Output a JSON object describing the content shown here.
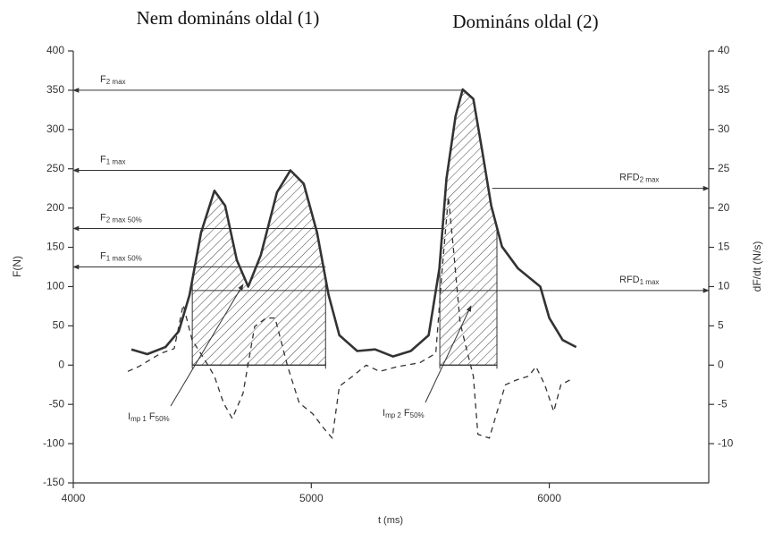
{
  "chart_data": {
    "type": "line",
    "titles": [
      "Nem domináns oldal (1)",
      "Domináns oldal (2)"
    ],
    "x_label": "t (ms)",
    "y_label": "F(N)",
    "y2_label": "dF/dt (N/s)",
    "xlim": [
      4000,
      6670
    ],
    "xticks": [
      4000,
      5000,
      6000
    ],
    "ylim": [
      -150,
      400
    ],
    "yticks": [
      -150,
      -100,
      -50,
      0,
      50,
      100,
      150,
      200,
      250,
      300,
      350,
      400
    ],
    "y2lim": [
      -15,
      40
    ],
    "y2ticks": [
      -10,
      -5,
      0,
      5,
      10,
      15,
      20,
      25,
      30,
      35,
      40
    ],
    "series": [
      {
        "name": "F",
        "color": "#333333",
        "dashed": false,
        "x": [
          4244,
          4311,
          4387,
          4443,
          4488,
          4537,
          4593,
          4638,
          4687,
          4735,
          4788,
          4856,
          4912,
          4968,
          5024,
          5073,
          5118,
          5193,
          5268,
          5343,
          5418,
          5493,
          5538,
          5568,
          5606,
          5636,
          5681,
          5719,
          5756,
          5801,
          5869,
          5962,
          6000,
          6056,
          6113
        ],
        "values": [
          20,
          14,
          23,
          43,
          89,
          169,
          222,
          203,
          134,
          100,
          140,
          220,
          248,
          231,
          169,
          89,
          38,
          18,
          20,
          11,
          18,
          38,
          123,
          237,
          317,
          351,
          339,
          271,
          203,
          151,
          123,
          100,
          60,
          32,
          23
        ]
      },
      {
        "name": "dF/dt",
        "color": "#333333",
        "dashed": true,
        "axis": "y2",
        "x": [
          4229,
          4274,
          4368,
          4424,
          4462,
          4499,
          4548,
          4593,
          4631,
          4668,
          4713,
          4762,
          4810,
          4848,
          4901,
          4949,
          5006,
          5051,
          5088,
          5118,
          5174,
          5231,
          5287,
          5362,
          5456,
          5523,
          5550,
          5576,
          5598,
          5625,
          5643,
          5681,
          5700,
          5748,
          5786,
          5816,
          5861,
          5913,
          5944,
          5981,
          6019,
          6049,
          6086
        ],
        "values": [
          -0.8,
          -0.2,
          1.5,
          2.1,
          7.7,
          3.2,
          0.9,
          -1.4,
          -4.8,
          -6.8,
          -3.6,
          4.9,
          6.0,
          6.0,
          -0.2,
          -4.8,
          -6.2,
          -8.0,
          -9.3,
          -2.7,
          -1.4,
          0.0,
          -0.8,
          -0.2,
          0.3,
          1.5,
          12.3,
          21.4,
          14.6,
          5.5,
          3.2,
          -1.4,
          -8.8,
          -9.3,
          -5.4,
          -2.5,
          -1.9,
          -1.4,
          -0.2,
          -2.5,
          -5.9,
          -2.5,
          -1.9
        ]
      }
    ],
    "shaded_regions": [
      {
        "x": [
          4500,
          5060
        ],
        "label_parts": [
          "I",
          "mp 1",
          " F",
          "50%"
        ]
      },
      {
        "x": [
          5540,
          5780
        ],
        "label_parts": [
          "I",
          "mp 2",
          " F",
          "50%"
        ]
      }
    ],
    "reference_arrows": [
      {
        "label_parts": [
          "F",
          "2 max"
        ],
        "y": 350,
        "x": [
          5636,
          4000
        ]
      },
      {
        "label_parts": [
          "F",
          "1 max"
        ],
        "y": 248,
        "x": [
          4912,
          4000
        ]
      },
      {
        "label_parts": [
          "F",
          "2 max 50%"
        ],
        "y": 174,
        "x": [
          5560,
          4000
        ]
      },
      {
        "label_parts": [
          "F",
          "1 max 50%"
        ],
        "y": 125,
        "x": [
          5060,
          4000
        ]
      },
      {
        "label_parts": [
          "RFD",
          "2 max"
        ],
        "axis": "y2",
        "y": 22.5,
        "x": [
          5760,
          6670
        ]
      },
      {
        "label_parts": [
          "RFD",
          "1 max"
        ],
        "axis": "y2",
        "y": 9.5,
        "x": [
          4500,
          6670
        ]
      }
    ]
  }
}
